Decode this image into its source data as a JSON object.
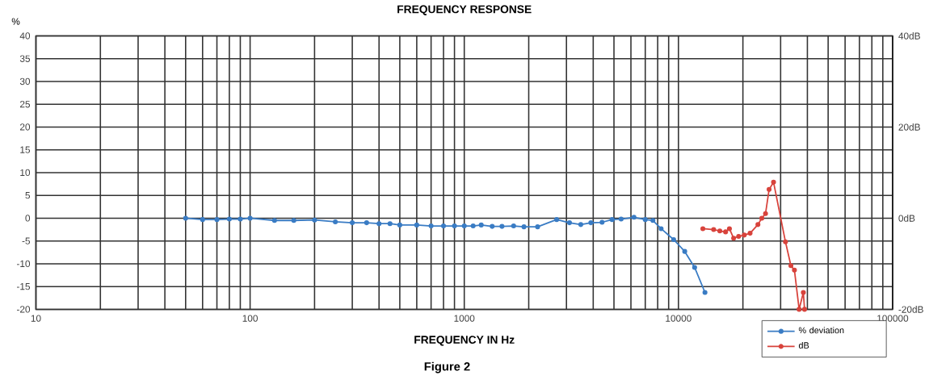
{
  "chart_data": {
    "type": "line",
    "title": "FREQUENCY RESPONSE",
    "xlabel": "FREQUENCY IN Hz",
    "ylabel": "%",
    "annotations": [
      "Figure 2"
    ],
    "log": "x",
    "grid": true,
    "legend": "bottom right",
    "marker": "circle",
    "line_style": "solid",
    "xlim": [
      10,
      100000
    ],
    "xticks": [
      10,
      100,
      1000,
      10000,
      100000
    ],
    "ylim": [
      -20,
      40
    ],
    "yticks": [
      -20,
      -15,
      -10,
      -5,
      0,
      5,
      10,
      15,
      20,
      25,
      30,
      35,
      40
    ],
    "y2lim": [
      -20,
      40
    ],
    "y2ticks": [
      {
        "value": -20,
        "label": "-20dB"
      },
      {
        "value": 0,
        "label": "0dB"
      },
      {
        "value": 20,
        "label": "20dB"
      },
      {
        "value": 40,
        "label": "40dB"
      }
    ],
    "series": [
      {
        "name": "% deviation",
        "color": "#3a7cc4",
        "x": [
          50,
          60,
          70,
          80,
          90,
          100,
          130,
          160,
          200,
          250,
          300,
          350,
          400,
          450,
          500,
          600,
          700,
          800,
          900,
          1000,
          1100,
          1200,
          1350,
          1500,
          1700,
          1900,
          2200,
          2700,
          3100,
          3500,
          3900,
          4400,
          4900,
          5400,
          6200,
          7000,
          7600,
          8300,
          9500,
          10700,
          11900,
          13300
        ],
        "values": [
          0,
          -0.3,
          -0.3,
          -0.2,
          -0.2,
          0,
          -0.5,
          -0.5,
          -0.4,
          -0.8,
          -1,
          -1,
          -1.2,
          -1.2,
          -1.5,
          -1.5,
          -1.7,
          -1.7,
          -1.7,
          -1.7,
          -1.7,
          -1.5,
          -1.8,
          -1.8,
          -1.7,
          -1.9,
          -1.9,
          -0.3,
          -1,
          -1.4,
          -1,
          -0.9,
          -0.3,
          -0.2,
          0.2,
          -0.3,
          -0.5,
          -2.3,
          -4.7,
          -7.3,
          -10.8,
          -16.3
        ]
      },
      {
        "name": "dB",
        "color": "#d8433c",
        "axis": "y2",
        "x": [
          13000,
          14600,
          15600,
          16600,
          17300,
          18100,
          19100,
          20300,
          21600,
          23500,
          24500,
          25500,
          26500,
          27800,
          31600,
          33500,
          34800,
          36600,
          38300,
          38800
        ],
        "values": [
          -2.3,
          -2.5,
          -2.8,
          -3,
          -2.3,
          -4.4,
          -4,
          -3.7,
          -3.3,
          -1.4,
          0,
          1,
          6.3,
          7.9,
          -5.2,
          -10.4,
          -11.4,
          -20,
          -16.3,
          -20
        ]
      }
    ]
  }
}
